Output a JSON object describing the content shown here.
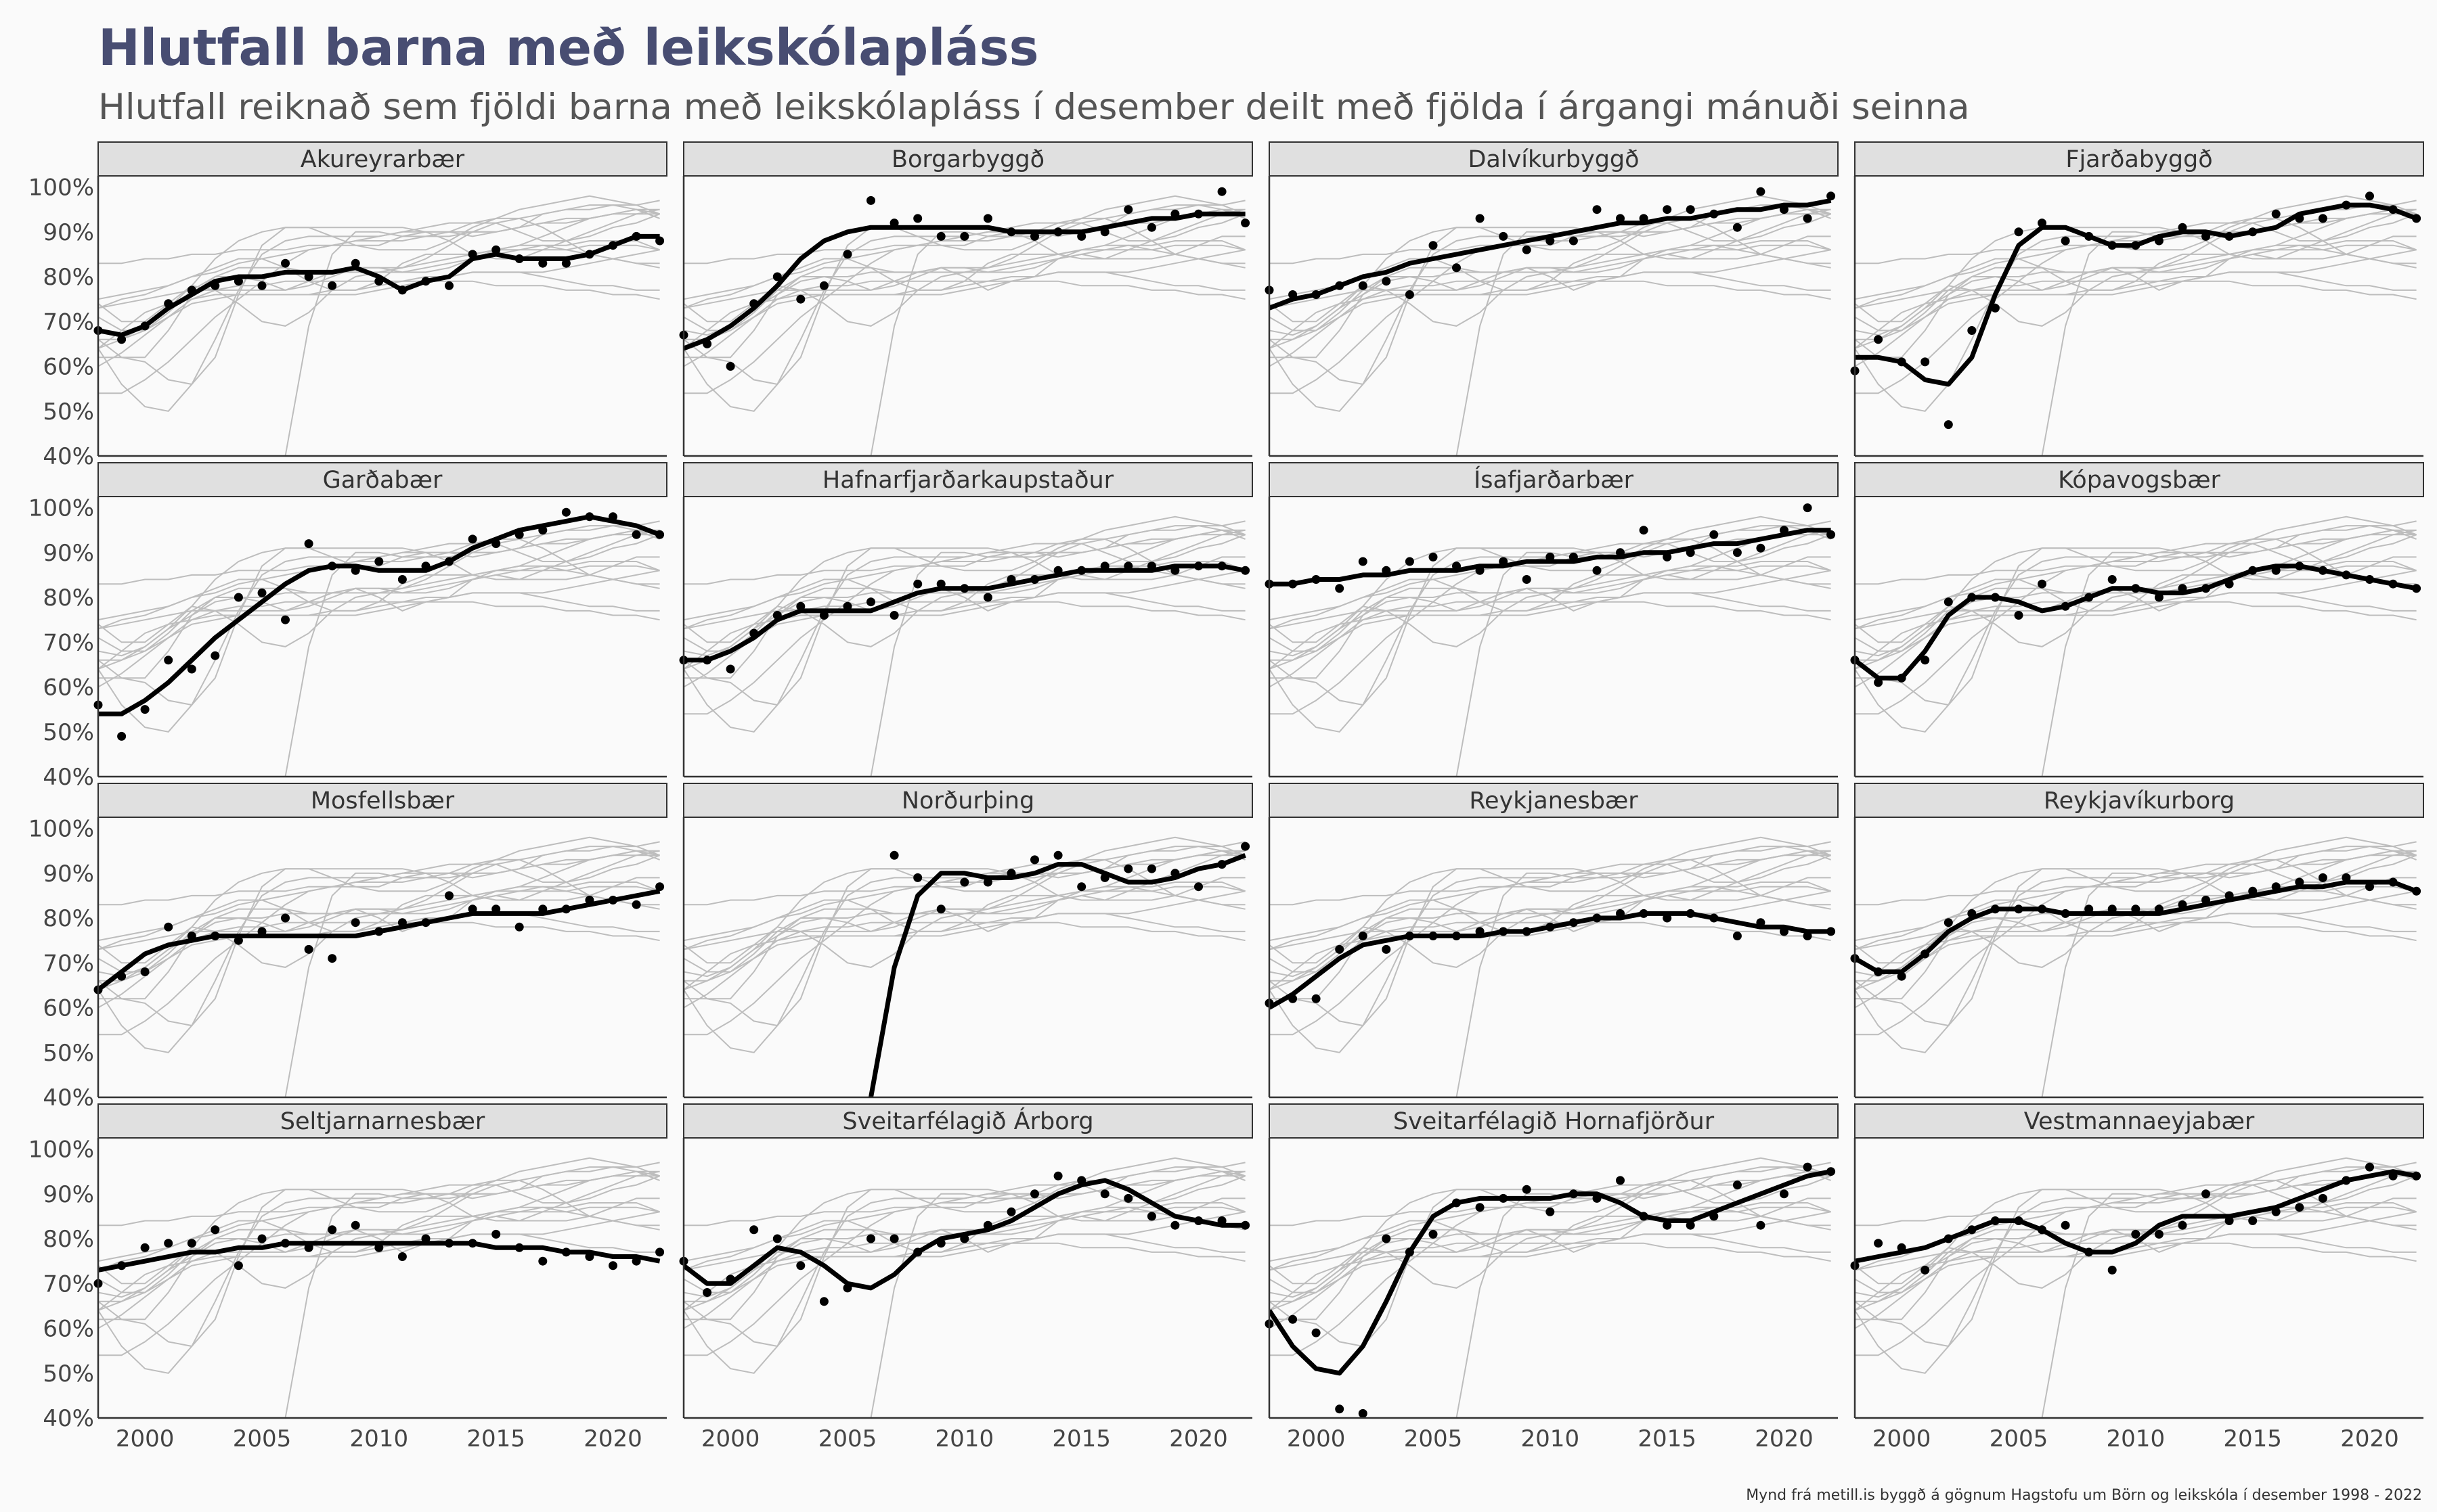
{
  "title": "Hlutfall barna með leikskólapláss",
  "subtitle": "Hlutfall reiknað sem fjöldi barna með leikskólapláss í desember deilt með fjölda í árgangi mánuði seinna",
  "caption": "Mynd frá metill.is byggð á gögnum Hagstofu um Börn og leikskóla í desember 1998 - 2022",
  "chart_data": {
    "type": "line",
    "facet_layout": "4x4 small multiples",
    "x_ticks": [
      2000,
      2005,
      2010,
      2015,
      2020
    ],
    "y_ticks": [
      40,
      50,
      60,
      70,
      80,
      90,
      100
    ],
    "y_tick_labels": [
      "40%",
      "50%",
      "60%",
      "70%",
      "80%",
      "90%",
      "100%"
    ],
    "xlim": [
      1998,
      2022.3
    ],
    "ylim": [
      40,
      102.5
    ],
    "colors": {
      "highlight": "#000000",
      "background_lines": "#bdbdbd",
      "strip_fill": "#e0e0e0",
      "title": "#484d72"
    },
    "background": "each panel shows other municipalities' smoothed lines in light grey",
    "years": [
      1998,
      1999,
      2000,
      2001,
      2002,
      2003,
      2004,
      2005,
      2006,
      2007,
      2008,
      2009,
      2010,
      2011,
      2012,
      2013,
      2014,
      2015,
      2016,
      2017,
      2018,
      2019,
      2020,
      2021,
      2022
    ],
    "panels": [
      {
        "name": "Akureyrarbær",
        "points": [
          68,
          66,
          69,
          74,
          77,
          78,
          79,
          78,
          83,
          80,
          78,
          83,
          79,
          77,
          79,
          78,
          85,
          86,
          84,
          83,
          83,
          85,
          87,
          89,
          88
        ],
        "trend": [
          68,
          67,
          69,
          73,
          76,
          79,
          80,
          80,
          81,
          81,
          81,
          82,
          80,
          77,
          79,
          80,
          84,
          85,
          84,
          84,
          84,
          85,
          87,
          89,
          89
        ]
      },
      {
        "name": "Borgarbyggð",
        "points": [
          67,
          65,
          60,
          74,
          80,
          75,
          78,
          85,
          97,
          92,
          93,
          89,
          89,
          93,
          90,
          89,
          90,
          89,
          90,
          95,
          91,
          94,
          94,
          99,
          92
        ],
        "trend": [
          64,
          66,
          69,
          73,
          78,
          84,
          88,
          90,
          91,
          91,
          91,
          91,
          91,
          91,
          90,
          90,
          90,
          90,
          91,
          92,
          93,
          93,
          94,
          94,
          94
        ]
      },
      {
        "name": "Dalvíkurbyggð",
        "points": [
          77,
          76,
          76,
          78,
          78,
          79,
          76,
          87,
          82,
          93,
          89,
          86,
          88,
          88,
          95,
          93,
          93,
          95,
          95,
          94,
          91,
          99,
          95,
          93,
          98
        ],
        "trend": [
          73,
          75,
          76,
          78,
          80,
          81,
          83,
          84,
          85,
          86,
          87,
          88,
          89,
          90,
          91,
          92,
          92,
          93,
          93,
          94,
          95,
          95,
          96,
          96,
          97
        ]
      },
      {
        "name": "Fjarðabyggð",
        "points": [
          59,
          66,
          61,
          61,
          47,
          68,
          73,
          90,
          92,
          88,
          89,
          87,
          87,
          88,
          91,
          89,
          89,
          90,
          94,
          93,
          93,
          96,
          98,
          95,
          93
        ],
        "trend": [
          62,
          62,
          61,
          57,
          56,
          62,
          76,
          87,
          91,
          91,
          89,
          87,
          87,
          89,
          90,
          90,
          89,
          90,
          91,
          94,
          95,
          96,
          96,
          95,
          93
        ]
      },
      {
        "name": "Garðabær",
        "points": [
          56,
          49,
          55,
          66,
          64,
          67,
          80,
          81,
          75,
          92,
          87,
          86,
          88,
          84,
          87,
          88,
          93,
          92,
          94,
          95,
          99,
          98,
          98,
          94,
          94
        ],
        "trend": [
          54,
          54,
          57,
          61,
          66,
          71,
          75,
          79,
          83,
          86,
          87,
          87,
          86,
          86,
          86,
          88,
          91,
          93,
          95,
          96,
          97,
          98,
          97,
          96,
          94
        ]
      },
      {
        "name": "Hafnarfjarðarkaupstaður",
        "points": [
          66,
          66,
          64,
          72,
          76,
          78,
          76,
          78,
          79,
          76,
          83,
          83,
          82,
          80,
          84,
          84,
          86,
          86,
          87,
          87,
          87,
          86,
          87,
          87,
          86
        ],
        "trend": [
          66,
          66,
          68,
          71,
          75,
          77,
          77,
          77,
          77,
          79,
          81,
          82,
          82,
          82,
          83,
          84,
          85,
          86,
          86,
          86,
          86,
          87,
          87,
          87,
          86
        ]
      },
      {
        "name": "Ísafjarðarbær",
        "points": [
          83,
          83,
          84,
          82,
          88,
          86,
          88,
          89,
          87,
          86,
          88,
          84,
          89,
          89,
          86,
          90,
          95,
          89,
          90,
          94,
          90,
          91,
          95,
          100,
          94
        ],
        "trend": [
          83,
          83,
          84,
          84,
          85,
          85,
          86,
          86,
          86,
          87,
          87,
          88,
          88,
          88,
          89,
          89,
          90,
          90,
          91,
          92,
          92,
          93,
          94,
          95,
          95
        ]
      },
      {
        "name": "Kópavogsbær",
        "points": [
          66,
          61,
          62,
          66,
          79,
          80,
          80,
          76,
          83,
          78,
          80,
          84,
          82,
          80,
          82,
          82,
          83,
          86,
          86,
          87,
          86,
          85,
          84,
          83,
          82
        ],
        "trend": [
          66,
          62,
          62,
          68,
          76,
          80,
          80,
          79,
          77,
          78,
          80,
          82,
          82,
          81,
          81,
          82,
          84,
          86,
          87,
          87,
          86,
          85,
          84,
          83,
          82
        ]
      },
      {
        "name": "Mosfellsbær",
        "points": [
          64,
          67,
          68,
          78,
          76,
          76,
          75,
          77,
          80,
          73,
          71,
          79,
          77,
          79,
          79,
          85,
          82,
          82,
          78,
          82,
          82,
          84,
          84,
          83,
          87
        ],
        "trend": [
          64,
          68,
          72,
          74,
          75,
          76,
          76,
          76,
          76,
          76,
          76,
          76,
          77,
          78,
          79,
          80,
          81,
          81,
          81,
          81,
          82,
          83,
          84,
          85,
          86
        ]
      },
      {
        "name": "Norðurþing",
        "points": [
          null,
          null,
          null,
          null,
          null,
          null,
          null,
          null,
          null,
          94,
          89,
          82,
          88,
          88,
          90,
          93,
          94,
          87,
          89,
          91,
          91,
          90,
          87,
          92,
          96
        ],
        "trend": [
          null,
          null,
          null,
          null,
          null,
          null,
          null,
          null,
          40,
          69,
          85,
          90,
          90,
          89,
          89,
          90,
          92,
          92,
          90,
          88,
          88,
          89,
          91,
          92,
          94
        ]
      },
      {
        "name": "Reykjanesbær",
        "points": [
          61,
          62,
          62,
          73,
          76,
          73,
          76,
          76,
          76,
          77,
          77,
          77,
          78,
          79,
          80,
          81,
          81,
          80,
          81,
          80,
          76,
          79,
          77,
          76,
          77
        ],
        "trend": [
          60,
          63,
          67,
          71,
          74,
          75,
          76,
          76,
          76,
          76,
          77,
          77,
          78,
          79,
          80,
          80,
          81,
          81,
          81,
          80,
          79,
          78,
          78,
          77,
          77
        ]
      },
      {
        "name": "Reykjavíkurborg",
        "points": [
          71,
          68,
          67,
          72,
          79,
          81,
          82,
          82,
          82,
          81,
          82,
          82,
          82,
          82,
          83,
          84,
          85,
          86,
          87,
          88,
          89,
          89,
          87,
          88,
          86
        ],
        "trend": [
          71,
          68,
          68,
          72,
          77,
          80,
          82,
          82,
          82,
          81,
          81,
          81,
          81,
          81,
          82,
          83,
          84,
          85,
          86,
          87,
          87,
          88,
          88,
          88,
          86
        ]
      },
      {
        "name": "Seltjarnarnesbær",
        "points": [
          70,
          74,
          78,
          79,
          79,
          82,
          74,
          80,
          79,
          78,
          82,
          83,
          78,
          76,
          80,
          79,
          79,
          81,
          78,
          75,
          77,
          76,
          74,
          75,
          77
        ],
        "trend": [
          73,
          74,
          75,
          76,
          77,
          77,
          78,
          78,
          79,
          79,
          79,
          79,
          79,
          79,
          79,
          79,
          79,
          78,
          78,
          78,
          77,
          77,
          76,
          76,
          75
        ]
      },
      {
        "name": "Sveitarfélagið Árborg",
        "points": [
          75,
          68,
          71,
          82,
          80,
          74,
          66,
          69,
          80,
          80,
          77,
          79,
          80,
          83,
          86,
          90,
          94,
          93,
          90,
          89,
          85,
          83,
          84,
          84,
          83
        ],
        "trend": [
          74,
          70,
          70,
          74,
          78,
          77,
          74,
          70,
          69,
          72,
          77,
          80,
          81,
          82,
          84,
          87,
          90,
          92,
          93,
          91,
          88,
          85,
          84,
          83,
          83
        ]
      },
      {
        "name": "Sveitarfélagið Hornafjörður",
        "points": [
          61,
          62,
          59,
          42,
          41,
          80,
          77,
          81,
          88,
          87,
          89,
          91,
          86,
          90,
          89,
          93,
          85,
          83,
          83,
          85,
          92,
          83,
          90,
          96,
          95
        ],
        "trend": [
          64,
          56,
          51,
          50,
          56,
          66,
          77,
          85,
          88,
          89,
          89,
          89,
          89,
          90,
          90,
          88,
          85,
          84,
          84,
          86,
          88,
          90,
          92,
          94,
          95
        ]
      },
      {
        "name": "Vestmannaeyjabær",
        "points": [
          74,
          79,
          78,
          73,
          80,
          82,
          84,
          84,
          82,
          83,
          77,
          73,
          81,
          81,
          83,
          90,
          84,
          84,
          86,
          87,
          89,
          93,
          96,
          94,
          94
        ],
        "trend": [
          75,
          76,
          77,
          78,
          80,
          82,
          84,
          84,
          82,
          79,
          77,
          77,
          79,
          83,
          85,
          85,
          85,
          86,
          87,
          89,
          91,
          93,
          94,
          95,
          94
        ]
      }
    ]
  }
}
